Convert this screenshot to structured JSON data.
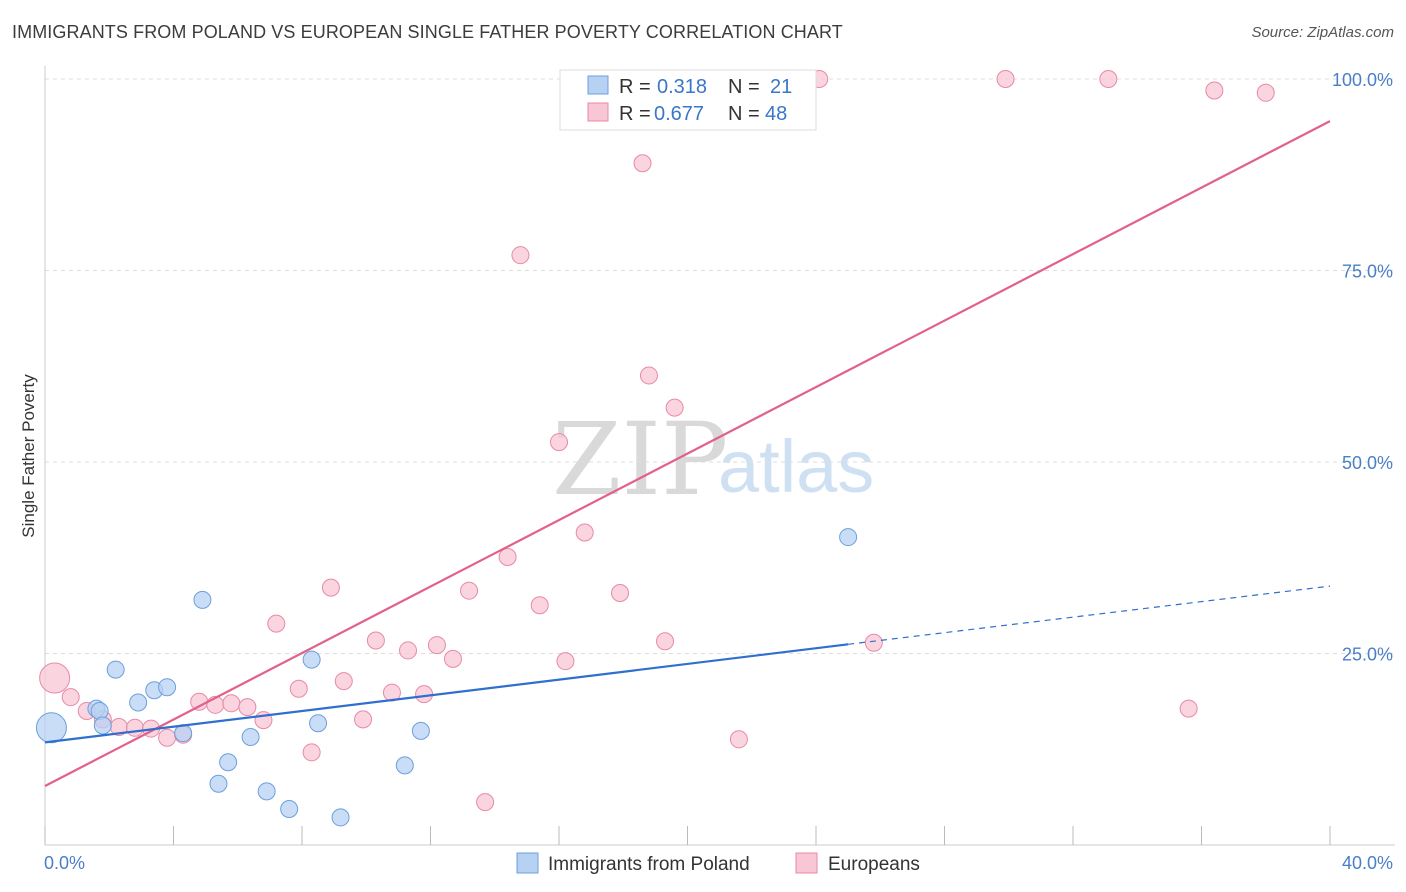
{
  "title": "IMMIGRANTS FROM POLAND VS EUROPEAN SINGLE FATHER POVERTY CORRELATION CHART",
  "source": "Source: ZipAtlas.com",
  "watermark": {
    "zip": "ZIP",
    "atlas": "atlas"
  },
  "legend_top": {
    "r_label": "R =",
    "n_label": "N =",
    "rows": [
      {
        "r": "0.318",
        "n": "21"
      },
      {
        "r": "0.677",
        "n": "48"
      }
    ]
  },
  "colors": {
    "poland_fill": "#b7d1f3",
    "poland_stroke": "#6d9fdc",
    "poland_line": "#2f6fce",
    "europe_fill": "#f8c6d4",
    "europe_stroke": "#e88aa6",
    "europe_line": "#e2608a",
    "tick_text": "#4a7fc8",
    "grid": "#dddddd"
  },
  "chart_data": {
    "type": "scatter",
    "title": "IMMIGRANTS FROM POLAND VS EUROPEAN SINGLE FATHER POVERTY CORRELATION CHART",
    "xlabel": "",
    "ylabel": "Single Father Poverty",
    "xlim": [
      0,
      40
    ],
    "ylim": [
      0,
      100
    ],
    "x_ticks": [
      "0.0%",
      "40.0%"
    ],
    "y_ticks": [
      "25.0%",
      "50.0%",
      "75.0%",
      "100.0%"
    ],
    "y_tick_values": [
      25,
      50,
      75,
      100
    ],
    "grid": true,
    "legend_position": "bottom",
    "series": [
      {
        "name": "Immigrants from Poland",
        "points": [
          [
            0.2,
            15.3
          ],
          [
            1.6,
            17.8
          ],
          [
            1.7,
            17.5
          ],
          [
            1.8,
            15.6
          ],
          [
            2.2,
            22.9
          ],
          [
            2.9,
            18.6
          ],
          [
            3.4,
            20.2
          ],
          [
            3.8,
            20.6
          ],
          [
            4.3,
            14.6
          ],
          [
            4.9,
            32.0
          ],
          [
            5.4,
            8.0
          ],
          [
            5.7,
            10.8
          ],
          [
            6.4,
            14.1
          ],
          [
            6.9,
            7.0
          ],
          [
            7.6,
            4.7
          ],
          [
            8.3,
            24.2
          ],
          [
            8.5,
            15.9
          ],
          [
            9.2,
            3.6
          ],
          [
            11.2,
            10.4
          ],
          [
            11.7,
            14.9
          ],
          [
            25.0,
            40.2
          ]
        ],
        "big_point_index": 0,
        "trend": {
          "x1": 0,
          "y1": 13.4,
          "x2": 25.0,
          "y2": 26.2,
          "dash_x2": 40,
          "dash_y2": 33.8
        }
      },
      {
        "name": "Europeans",
        "points": [
          [
            0.3,
            21.8
          ],
          [
            0.8,
            19.3
          ],
          [
            1.3,
            17.5
          ],
          [
            1.8,
            16.4
          ],
          [
            2.3,
            15.4
          ],
          [
            2.8,
            15.3
          ],
          [
            3.3,
            15.2
          ],
          [
            3.8,
            14.0
          ],
          [
            4.3,
            14.4
          ],
          [
            4.8,
            18.7
          ],
          [
            5.3,
            18.3
          ],
          [
            5.8,
            18.5
          ],
          [
            6.3,
            18.0
          ],
          [
            6.8,
            16.3
          ],
          [
            7.2,
            28.9
          ],
          [
            7.9,
            20.4
          ],
          [
            8.3,
            12.1
          ],
          [
            8.9,
            33.6
          ],
          [
            9.3,
            21.4
          ],
          [
            9.9,
            16.4
          ],
          [
            10.3,
            26.7
          ],
          [
            10.8,
            19.9
          ],
          [
            11.3,
            25.4
          ],
          [
            11.8,
            19.7
          ],
          [
            12.2,
            26.1
          ],
          [
            12.7,
            24.3
          ],
          [
            13.2,
            33.2
          ],
          [
            13.7,
            5.6
          ],
          [
            14.4,
            37.6
          ],
          [
            14.8,
            77.0
          ],
          [
            15.4,
            31.3
          ],
          [
            16.0,
            52.6
          ],
          [
            16.2,
            24.0
          ],
          [
            16.8,
            40.8
          ],
          [
            17.9,
            32.9
          ],
          [
            18.6,
            89.0
          ],
          [
            18.8,
            61.3
          ],
          [
            19.3,
            26.6
          ],
          [
            19.6,
            57.1
          ],
          [
            20.8,
            100.0
          ],
          [
            21.6,
            13.8
          ],
          [
            24.1,
            100.0
          ],
          [
            25.8,
            26.4
          ],
          [
            29.9,
            100.0
          ],
          [
            33.1,
            100.0
          ],
          [
            35.6,
            17.8
          ],
          [
            36.4,
            98.5
          ],
          [
            38.0,
            98.2
          ]
        ],
        "big_point_index": 0,
        "trend": {
          "x1": 0,
          "y1": 7.7,
          "x2": 40,
          "y2": 94.5
        }
      }
    ]
  }
}
